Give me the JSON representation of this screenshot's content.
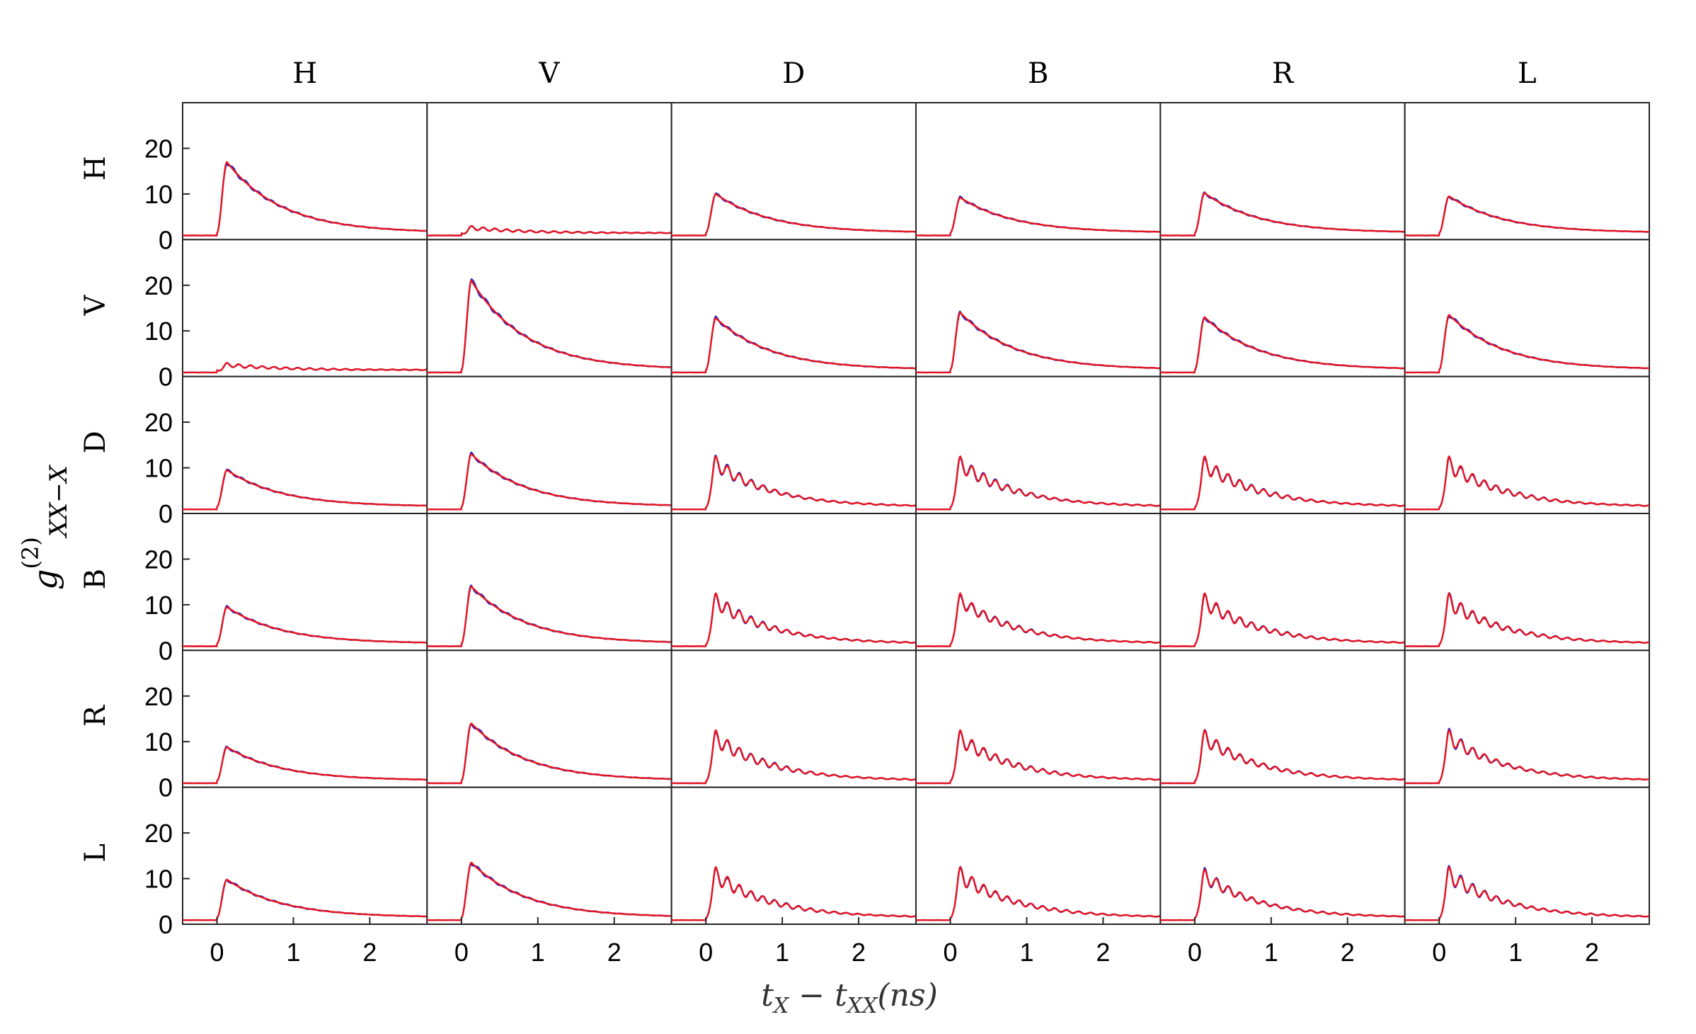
{
  "chart_data": {
    "type": "line",
    "column_labels": [
      "H",
      "V",
      "D",
      "B",
      "R",
      "L"
    ],
    "row_labels": [
      "H",
      "V",
      "D",
      "B",
      "R",
      "L"
    ],
    "xlabel": "t_X − t_XX(ns)",
    "ylabel": "g(2)XX−X",
    "xlim": [
      -0.45,
      2.75
    ],
    "ylim": [
      0,
      30
    ],
    "x_ticks": [
      0,
      1,
      2
    ],
    "y_ticks": [
      0,
      10,
      20
    ],
    "grid": false,
    "series_colors": {
      "theory": "#1f1fd0",
      "measured": "#e8141e"
    },
    "panels": [
      [
        {
          "peak": 17.0,
          "base": 1.5,
          "osc": 0
        },
        {
          "peak": 3.0,
          "base": 1.5,
          "osc": 0.3
        },
        {
          "peak": 10.0,
          "base": 1.5,
          "osc": 0
        },
        {
          "peak": 9.2,
          "base": 1.5,
          "osc": 0
        },
        {
          "peak": 10.2,
          "base": 1.5,
          "osc": 0
        },
        {
          "peak": 9.5,
          "base": 1.5,
          "osc": 0
        }
      ],
      [
        {
          "peak": 3.0,
          "base": 1.5,
          "osc": 0.3
        },
        {
          "peak": 21.0,
          "base": 1.5,
          "osc": 0
        },
        {
          "peak": 12.8,
          "base": 1.5,
          "osc": 0
        },
        {
          "peak": 14.0,
          "base": 1.5,
          "osc": 0
        },
        {
          "peak": 13.0,
          "base": 1.5,
          "osc": 0
        },
        {
          "peak": 13.5,
          "base": 1.5,
          "osc": 0
        }
      ],
      [
        {
          "peak": 9.5,
          "base": 1.5,
          "osc": 0
        },
        {
          "peak": 13.0,
          "base": 1.5,
          "osc": 0
        },
        {
          "peak": 12.5,
          "base": 1.5,
          "osc": 0.25
        },
        {
          "peak": 12.5,
          "base": 1.5,
          "osc": 0.28
        },
        {
          "peak": 12.5,
          "base": 1.5,
          "osc": 0.3
        },
        {
          "peak": 12.5,
          "base": 1.5,
          "osc": 0.3
        }
      ],
      [
        {
          "peak": 9.5,
          "base": 1.5,
          "osc": 0
        },
        {
          "peak": 14.0,
          "base": 1.5,
          "osc": 0
        },
        {
          "peak": 12.5,
          "base": 1.5,
          "osc": 0.28
        },
        {
          "peak": 12.5,
          "base": 1.5,
          "osc": 0.25
        },
        {
          "peak": 12.5,
          "base": 1.5,
          "osc": 0.3
        },
        {
          "peak": 12.5,
          "base": 1.5,
          "osc": 0.3
        }
      ],
      [
        {
          "peak": 8.8,
          "base": 1.5,
          "osc": 0
        },
        {
          "peak": 14.0,
          "base": 1.5,
          "osc": 0
        },
        {
          "peak": 12.5,
          "base": 1.5,
          "osc": 0.3
        },
        {
          "peak": 12.5,
          "base": 1.5,
          "osc": 0.3
        },
        {
          "peak": 12.5,
          "base": 1.5,
          "osc": 0.28
        },
        {
          "peak": 12.5,
          "base": 1.5,
          "osc": 0.25
        }
      ],
      [
        {
          "peak": 9.8,
          "base": 1.5,
          "osc": 0
        },
        {
          "peak": 13.5,
          "base": 1.5,
          "osc": 0
        },
        {
          "peak": 12.5,
          "base": 1.5,
          "osc": 0.3
        },
        {
          "peak": 12.5,
          "base": 1.5,
          "osc": 0.3
        },
        {
          "peak": 12.0,
          "base": 1.5,
          "osc": 0.25
        },
        {
          "peak": 12.5,
          "base": 1.5,
          "osc": 0.28
        }
      ]
    ]
  }
}
